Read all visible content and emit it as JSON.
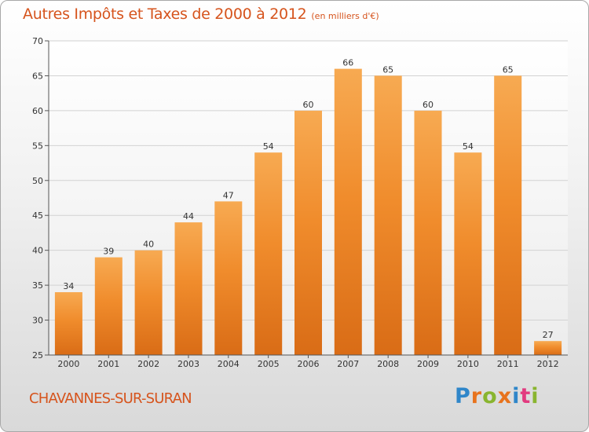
{
  "chart_data": {
    "type": "bar",
    "title": "Autres Impôts et Taxes de 2000 à 2012",
    "unit_label": "(en milliers d'€)",
    "categories": [
      "2000",
      "2001",
      "2002",
      "2003",
      "2004",
      "2005",
      "2006",
      "2007",
      "2008",
      "2009",
      "2010",
      "2011",
      "2012"
    ],
    "values": [
      34,
      39,
      40,
      44,
      47,
      54,
      60,
      66,
      65,
      60,
      54,
      65,
      27
    ],
    "ylim": [
      25,
      70
    ],
    "yticks": [
      25,
      30,
      35,
      40,
      45,
      50,
      55,
      60,
      65,
      70
    ],
    "grid": true,
    "bar_color": "#f08c2c",
    "bar_color_light": "#f7aa52",
    "bar_color_dark": "#d96c16",
    "grid_color": "#d2d2d2"
  },
  "commune": "CHAVANNES-SUR-SURAN",
  "logo": {
    "letters": [
      "P",
      "r",
      "o",
      "x",
      "i",
      "t",
      "i"
    ],
    "colors": [
      "#2f86c9",
      "#e8731d",
      "#89b52f",
      "#e8731d",
      "#2f86c9",
      "#e23b7f",
      "#89b52f"
    ]
  },
  "colors": {
    "title": "#d6541d",
    "commune": "#d6541d"
  }
}
